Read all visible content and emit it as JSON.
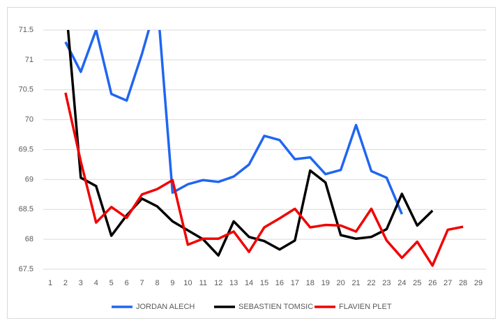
{
  "chart_data": {
    "type": "line",
    "categories": [
      1,
      2,
      3,
      4,
      5,
      6,
      7,
      8,
      9,
      10,
      11,
      12,
      13,
      14,
      15,
      16,
      17,
      18,
      19,
      20,
      21,
      22,
      23,
      24,
      25,
      26,
      27,
      28,
      29
    ],
    "series": [
      {
        "name": "JORDAN ALECH",
        "color": "#1f66f2",
        "values": [
          null,
          71.3,
          70.8,
          71.5,
          70.43,
          70.32,
          71.1,
          72,
          68.78,
          68.92,
          68.99,
          68.96,
          69.05,
          69.25,
          69.73,
          69.66,
          69.34,
          69.37,
          69.09,
          69.16,
          69.91,
          69.14,
          69.03,
          68.42,
          null,
          null,
          null,
          null,
          null
        ]
      },
      {
        "name": "SEBASTIEN TOMSIC",
        "color": "#000000",
        "values": [
          null,
          72,
          69.03,
          68.89,
          68.06,
          68.4,
          68.68,
          68.55,
          68.3,
          68.15,
          68.0,
          67.73,
          68.3,
          68.04,
          67.97,
          67.83,
          67.98,
          69.15,
          68.95,
          68.07,
          68.01,
          68.04,
          68.17,
          68.76,
          68.23,
          68.48,
          null,
          null,
          null
        ]
      },
      {
        "name": "FLAVIEN PLET",
        "color": "#f20000",
        "values": [
          null,
          70.45,
          69.3,
          68.28,
          68.54,
          68.36,
          68.75,
          68.84,
          68.99,
          67.91,
          68.01,
          68.01,
          68.13,
          67.79,
          68.2,
          68.35,
          68.51,
          68.2,
          68.24,
          68.23,
          68.13,
          68.51,
          67.98,
          67.69,
          67.96,
          67.56,
          68.16,
          68.21,
          null
        ]
      }
    ],
    "ylim": [
      67.5,
      71.5
    ],
    "yticks": [
      67.5,
      68,
      68.5,
      69,
      69.5,
      70,
      70.5,
      71,
      71.5
    ],
    "grid": true,
    "legend": "bottom"
  }
}
